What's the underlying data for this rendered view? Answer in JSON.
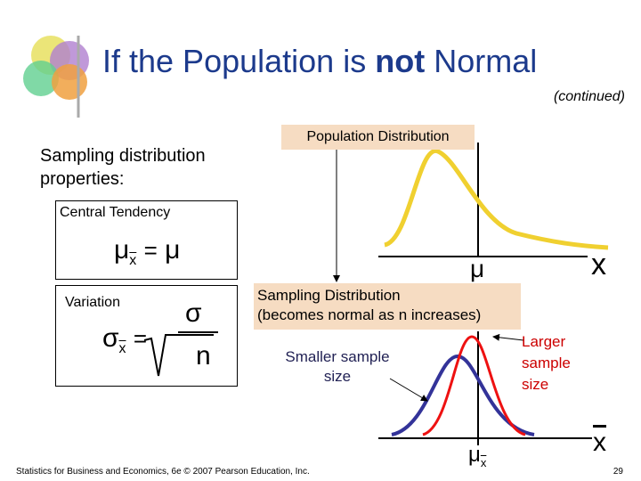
{
  "header": {
    "title": {
      "before": "If the Population is",
      "emphasis": "not",
      "after": "Normal"
    },
    "subtitle": "(continued)"
  },
  "properties": {
    "heading": "Sampling distribution properties:",
    "central_tendency": {
      "label": "Central Tendency",
      "formula": {
        "symbol": "μ",
        "subscript": "x",
        "equals": "=",
        "rhs": "μ"
      }
    },
    "variation": {
      "label": "Variation",
      "formula": {
        "symbol": "σ",
        "subscript": "x",
        "equals": "=",
        "numerator": "σ",
        "denominator": "n"
      }
    }
  },
  "population": {
    "label": "Population Distribution",
    "center_label": "μ",
    "axis_label": "x"
  },
  "sampling": {
    "label": "Sampling Distribution",
    "note": "(becomes normal as n increases)",
    "smaller": "Smaller sample size",
    "larger": "Larger sample size",
    "center_label": "μ",
    "center_subscript": "x",
    "axis_label": "x"
  },
  "footer": {
    "source": "Statistics for Business and Economics, 6e © 2007 Pearson Education, Inc.",
    "page": "29"
  }
}
